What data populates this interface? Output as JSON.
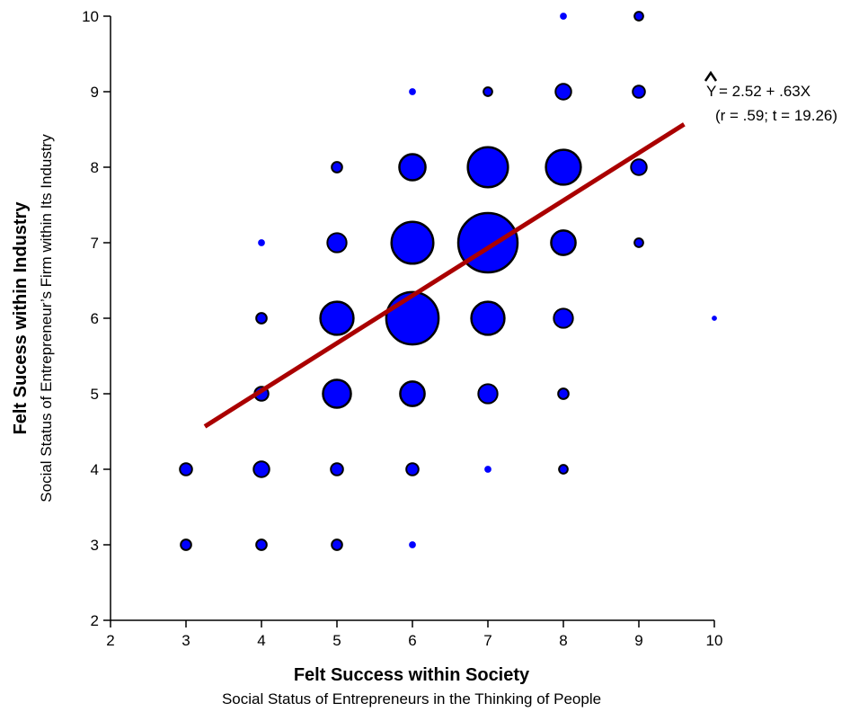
{
  "chart_data": {
    "type": "scatter",
    "xlabel": "Felt Success within Society",
    "xlabel_sub": "Social Status of Entrepreneurs in the Thinking of People",
    "ylabel": "Felt Sucess within Industry",
    "ylabel_sub": "Social Status of Entrepreneur’s Firm within Its Industry",
    "xlim": [
      2,
      10
    ],
    "ylim": [
      2,
      10
    ],
    "xticks": [
      2,
      3,
      4,
      5,
      6,
      7,
      8,
      9,
      10
    ],
    "yticks": [
      2,
      3,
      4,
      5,
      6,
      7,
      8,
      9,
      10
    ],
    "grid": false,
    "colors": {
      "bubble_fill": "#0000ff",
      "bubble_stroke": "#000000",
      "regression_line": "#aa0000"
    },
    "points": [
      {
        "x": 3,
        "y": 3,
        "size": 6
      },
      {
        "x": 4,
        "y": 3,
        "size": 6
      },
      {
        "x": 5,
        "y": 3,
        "size": 6
      },
      {
        "x": 6,
        "y": 3,
        "size": 4
      },
      {
        "x": 3,
        "y": 4,
        "size": 7
      },
      {
        "x": 4,
        "y": 4,
        "size": 9
      },
      {
        "x": 5,
        "y": 4,
        "size": 7
      },
      {
        "x": 6,
        "y": 4,
        "size": 7
      },
      {
        "x": 7,
        "y": 4,
        "size": 4
      },
      {
        "x": 8,
        "y": 4,
        "size": 5
      },
      {
        "x": 4,
        "y": 5,
        "size": 8
      },
      {
        "x": 5,
        "y": 5,
        "size": 16
      },
      {
        "x": 6,
        "y": 5,
        "size": 14
      },
      {
        "x": 7,
        "y": 5,
        "size": 11
      },
      {
        "x": 8,
        "y": 5,
        "size": 6
      },
      {
        "x": 4,
        "y": 6,
        "size": 6
      },
      {
        "x": 5,
        "y": 6,
        "size": 19
      },
      {
        "x": 6,
        "y": 6,
        "size": 30
      },
      {
        "x": 7,
        "y": 6,
        "size": 19
      },
      {
        "x": 8,
        "y": 6,
        "size": 11
      },
      {
        "x": 10,
        "y": 6,
        "size": 3
      },
      {
        "x": 4,
        "y": 7,
        "size": 4
      },
      {
        "x": 5,
        "y": 7,
        "size": 11
      },
      {
        "x": 6,
        "y": 7,
        "size": 24
      },
      {
        "x": 7,
        "y": 7,
        "size": 34
      },
      {
        "x": 8,
        "y": 7,
        "size": 14
      },
      {
        "x": 9,
        "y": 7,
        "size": 5
      },
      {
        "x": 5,
        "y": 8,
        "size": 6
      },
      {
        "x": 6,
        "y": 8,
        "size": 15
      },
      {
        "x": 7,
        "y": 8,
        "size": 23
      },
      {
        "x": 8,
        "y": 8,
        "size": 20
      },
      {
        "x": 9,
        "y": 8,
        "size": 9
      },
      {
        "x": 6,
        "y": 9,
        "size": 4
      },
      {
        "x": 7,
        "y": 9,
        "size": 5
      },
      {
        "x": 8,
        "y": 9,
        "size": 9
      },
      {
        "x": 9,
        "y": 9,
        "size": 7
      },
      {
        "x": 8,
        "y": 10,
        "size": 4
      },
      {
        "x": 9,
        "y": 10,
        "size": 5
      }
    ],
    "regression": {
      "intercept": 2.52,
      "slope": 0.63,
      "x_range": [
        3.25,
        9.6
      ],
      "label_line1": "= 2.52 + .63X",
      "label_symbol": "Y",
      "label_line2": "(r = .59; t = 19.26)"
    }
  }
}
